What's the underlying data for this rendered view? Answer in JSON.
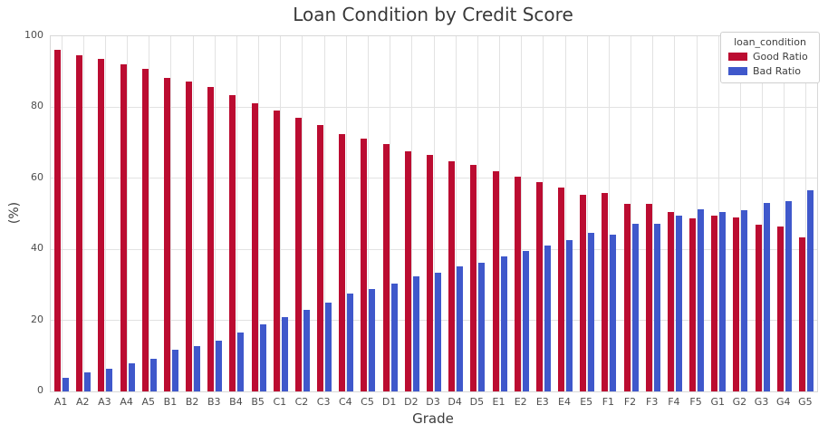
{
  "chart_data": {
    "type": "bar",
    "title": "Loan Condition by Credit Score",
    "xlabel": "Grade",
    "ylabel": "(%)",
    "ylim": [
      0,
      100
    ],
    "yticks": [
      0,
      20,
      40,
      60,
      80,
      100
    ],
    "grid": true,
    "legend": {
      "title": "loan_condition",
      "position": "upper right"
    },
    "categories": [
      "A1",
      "A2",
      "A3",
      "A4",
      "A5",
      "B1",
      "B2",
      "B3",
      "B4",
      "B5",
      "C1",
      "C2",
      "C3",
      "C4",
      "C5",
      "D1",
      "D2",
      "D3",
      "D4",
      "D5",
      "E1",
      "E2",
      "E3",
      "E4",
      "E5",
      "F1",
      "F2",
      "F3",
      "F4",
      "F5",
      "G1",
      "G2",
      "G3",
      "G4",
      "G5"
    ],
    "series": [
      {
        "name": "Good Ratio",
        "color": "#bb0c31",
        "values": [
          96.1,
          94.6,
          93.6,
          92.2,
          90.7,
          88.3,
          87.2,
          85.6,
          83.4,
          81.2,
          79.0,
          77.0,
          75.0,
          72.4,
          71.1,
          69.7,
          67.7,
          66.5,
          64.9,
          63.7,
          61.9,
          60.5,
          59.0,
          57.5,
          55.3,
          55.9,
          52.9,
          52.8,
          50.4,
          48.7,
          49.6,
          49.1,
          47.0,
          46.5,
          43.4
        ]
      },
      {
        "name": "Bad Ratio",
        "color": "#3f58cb",
        "values": [
          3.9,
          5.4,
          6.4,
          7.8,
          9.3,
          11.7,
          12.8,
          14.4,
          16.6,
          18.8,
          21.0,
          23.0,
          25.0,
          27.6,
          28.9,
          30.3,
          32.3,
          33.5,
          35.1,
          36.3,
          38.1,
          39.5,
          41.0,
          42.5,
          44.7,
          44.1,
          47.1,
          47.2,
          49.6,
          51.3,
          50.4,
          50.9,
          53.0,
          53.5,
          56.6
        ]
      }
    ]
  }
}
